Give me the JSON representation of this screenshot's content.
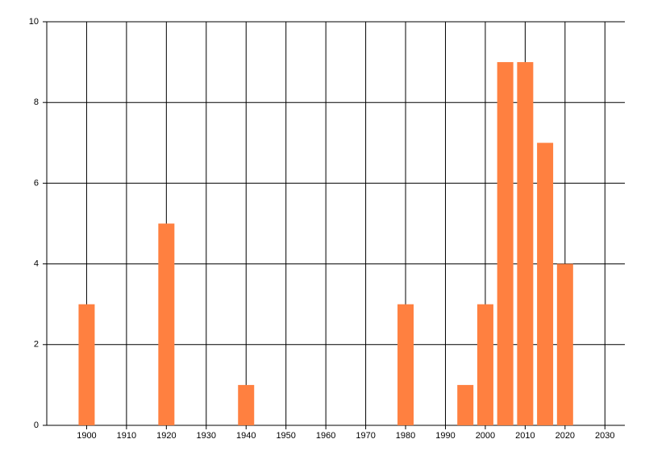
{
  "chart_data": {
    "type": "bar",
    "x": [
      1900,
      1920,
      1940,
      1980,
      1995,
      2000,
      2005,
      2010,
      2015,
      2020
    ],
    "values": [
      3,
      5,
      1,
      3,
      1,
      3,
      9,
      9,
      7,
      4
    ],
    "color": "#ff8040",
    "xlim": [
      1890,
      2035
    ],
    "xticks": [
      1900,
      1910,
      1920,
      1930,
      1940,
      1950,
      1960,
      1970,
      1980,
      1990,
      2000,
      2010,
      2020,
      2030
    ],
    "ylim": [
      0,
      10
    ],
    "yticks": [
      0,
      2,
      4,
      6,
      8,
      10
    ],
    "grid": true
  }
}
